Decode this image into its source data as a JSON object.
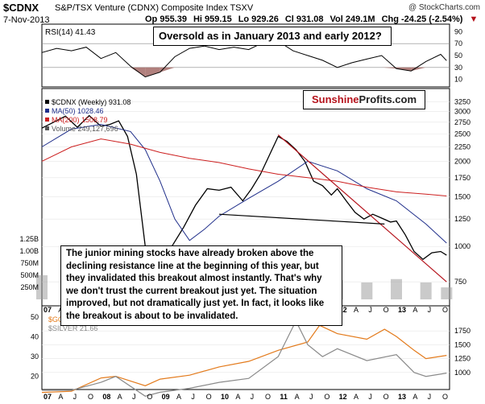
{
  "header": {
    "symbol": "$CDNX",
    "name": "S&P/TSX Venture (CDNX) Composite Index  TSXV",
    "copyright": "@ StockCharts.com",
    "date": "7-Nov-2013",
    "open": "Op 955.39",
    "high": "Hi 959.15",
    "low": "Lo 929.26",
    "close": "Cl 931.08",
    "volume": "Vol 249.1M",
    "change": "Chg -24.25 (-2.54%)",
    "change_marker": "▼"
  },
  "colors": {
    "price": "#000000",
    "ma50": "#1f2e8a",
    "ma200": "#cc1f1f",
    "volume": "#9e9e9e",
    "rsi_line": "#000000",
    "rsi_fill_low": "#a36a66",
    "gold": "#e37a1b",
    "silver": "#8a8a8a",
    "resistance": "#b5121b",
    "brand_red": "#b5121b"
  },
  "annotations": {
    "rsi_callout": "Oversold as in January 2013 and early 2012?",
    "main_callout": "The junior mining stocks have already broken above the declining resistance line at the beginning of this year, but they invalidated this breakout almost instantly. That's why we don't trust the current breakout just yet. The situation improved, but not dramatically just yet. In fact, it looks like the breakout is about to be invalidated.",
    "brand_part1": "Sunshine",
    "brand_part2": "Profits.com"
  },
  "chart_data": [
    {
      "type": "line",
      "title": "RSI(14) 41.43",
      "ylim": [
        0,
        100
      ],
      "yticks": [
        10,
        30,
        50,
        70,
        90
      ],
      "reference_lines": [
        30,
        70
      ],
      "x": [
        2007.0,
        2007.25,
        2007.5,
        2007.75,
        2008.0,
        2008.25,
        2008.5,
        2008.75,
        2009.0,
        2009.25,
        2009.5,
        2009.75,
        2010.0,
        2010.25,
        2010.5,
        2010.75,
        2011.0,
        2011.25,
        2011.5,
        2011.75,
        2012.0,
        2012.25,
        2012.5,
        2012.75,
        2013.0,
        2013.25,
        2013.5,
        2013.75,
        2013.85
      ],
      "values": [
        55,
        62,
        58,
        64,
        45,
        55,
        32,
        14,
        22,
        48,
        62,
        66,
        60,
        64,
        60,
        72,
        74,
        58,
        50,
        42,
        30,
        38,
        44,
        50,
        28,
        24,
        40,
        52,
        41.43
      ]
    },
    {
      "type": "line",
      "title": "$CDNX (Weekly) 931.08",
      "yscale": "log",
      "ylim": [
        650,
        3300
      ],
      "yticks": [
        750,
        1000,
        1250,
        1500,
        1750,
        2000,
        2250,
        2500,
        2750,
        3000,
        3250
      ],
      "x_tick_labels": [
        "07",
        "A",
        "J",
        "O",
        "08",
        "A",
        "J",
        "O",
        "09",
        "A",
        "J",
        "O",
        "10",
        "A",
        "J",
        "O",
        "11",
        "A",
        "J",
        "O",
        "12",
        "A",
        "J",
        "O",
        "13",
        "A",
        "J",
        "O"
      ],
      "series": [
        {
          "name": "$CDNX (Weekly) 931.08",
          "x": [
            2007.0,
            2007.2,
            2007.4,
            2007.6,
            2007.8,
            2008.0,
            2008.15,
            2008.3,
            2008.45,
            2008.6,
            2008.75,
            2008.9,
            2009.0,
            2009.2,
            2009.4,
            2009.6,
            2009.8,
            2010.0,
            2010.2,
            2010.4,
            2010.55,
            2010.7,
            2010.85,
            2011.0,
            2011.15,
            2011.3,
            2011.45,
            2011.6,
            2011.75,
            2011.9,
            2012.0,
            2012.15,
            2012.3,
            2012.45,
            2012.6,
            2012.75,
            2012.9,
            2013.0,
            2013.15,
            2013.3,
            2013.45,
            2013.6,
            2013.75,
            2013.85
          ],
          "values": [
            2620,
            2750,
            2890,
            2640,
            2900,
            2660,
            2700,
            2780,
            2450,
            1800,
            1000,
            780,
            820,
            1000,
            1170,
            1400,
            1600,
            1580,
            1620,
            1450,
            1600,
            1800,
            2100,
            2450,
            2350,
            2200,
            2000,
            1700,
            1640,
            1520,
            1600,
            1450,
            1320,
            1250,
            1300,
            1260,
            1220,
            1230,
            1100,
            960,
            900,
            950,
            960,
            931.08
          ]
        },
        {
          "name": "MA(50) 1028.46",
          "x": [
            2007.0,
            2007.5,
            2008.0,
            2008.5,
            2008.75,
            2009.0,
            2009.25,
            2009.5,
            2009.75,
            2010.0,
            2010.5,
            2011.0,
            2011.5,
            2012.0,
            2012.5,
            2013.0,
            2013.5,
            2013.85
          ],
          "values": [
            2250,
            2600,
            2700,
            2550,
            2200,
            1700,
            1250,
            1050,
            1150,
            1280,
            1480,
            1700,
            2000,
            1850,
            1600,
            1450,
            1200,
            1028.46
          ]
        },
        {
          "name": "MA(200) 1508.79",
          "x": [
            2007.0,
            2007.5,
            2008.0,
            2008.5,
            2009.0,
            2009.5,
            2010.0,
            2010.5,
            2011.0,
            2011.5,
            2012.0,
            2012.5,
            2013.0,
            2013.5,
            2013.85
          ],
          "values": [
            2000,
            2250,
            2400,
            2300,
            2150,
            2050,
            1980,
            1880,
            1800,
            1750,
            1700,
            1620,
            1560,
            1530,
            1508.79
          ]
        }
      ],
      "volume": {
        "name": "Volume 249,127,696",
        "ylim": [
          0,
          1500000000
        ],
        "yticks_labels": [
          "250M",
          "500M",
          "750M",
          "1.00B",
          "1.25B"
        ],
        "yticks_values": [
          250000000,
          500000000,
          750000000,
          1000000000,
          1250000000
        ],
        "x": [
          2007.0,
          2007.5,
          2008.0,
          2008.5,
          2009.0,
          2009.5,
          2010.0,
          2010.5,
          2011.0,
          2011.5,
          2012.0,
          2012.5,
          2013.0,
          2013.5,
          2013.85
        ],
        "values": [
          500000000,
          450000000,
          420000000,
          380000000,
          350000000,
          400000000,
          450000000,
          420000000,
          550000000,
          450000000,
          400000000,
          350000000,
          420000000,
          350000000,
          249127696
        ]
      },
      "trendlines": [
        {
          "name": "declining resistance line",
          "x": [
            2011.0,
            2013.85
          ],
          "values": [
            2480,
            750
          ]
        },
        {
          "name": "support line",
          "x": [
            2010.0,
            2012.8
          ],
          "values": [
            1300,
            1200
          ]
        }
      ]
    },
    {
      "type": "line",
      "title": "$GOLD / $SILVER",
      "left_axis": {
        "ylim": [
          15,
          50
        ],
        "yticks": [
          20,
          30,
          40,
          50
        ]
      },
      "right_axis": {
        "ylim": [
          750,
          2000
        ],
        "yticks": [
          1000,
          1250,
          1500,
          1750
        ]
      },
      "x_tick_labels": [
        "07",
        "A",
        "J",
        "O",
        "08",
        "A",
        "J",
        "O",
        "09",
        "A",
        "J",
        "O",
        "10",
        "A",
        "J",
        "O",
        "11",
        "A",
        "J",
        "O",
        "12",
        "A",
        "J",
        "O",
        "13",
        "A",
        "J",
        "O"
      ],
      "series": [
        {
          "name": "$GOLD",
          "axis": "right",
          "x": [
            2007.0,
            2007.5,
            2008.0,
            2008.25,
            2008.75,
            2009.0,
            2009.5,
            2010.0,
            2010.5,
            2011.0,
            2011.5,
            2011.7,
            2012.0,
            2012.5,
            2012.8,
            2013.0,
            2013.3,
            2013.5,
            2013.85
          ],
          "values": [
            640,
            660,
            900,
            930,
            760,
            880,
            950,
            1100,
            1200,
            1400,
            1550,
            1850,
            1700,
            1600,
            1780,
            1650,
            1400,
            1250,
            1308
          ]
        },
        {
          "name": "$SILVER 21.66",
          "axis": "left",
          "x": [
            2007.0,
            2007.5,
            2008.0,
            2008.25,
            2008.75,
            2009.0,
            2009.5,
            2010.0,
            2010.5,
            2011.0,
            2011.3,
            2011.5,
            2011.75,
            2012.0,
            2012.5,
            2013.0,
            2013.3,
            2013.5,
            2013.85
          ],
          "values": [
            13,
            13,
            17,
            20,
            10,
            12,
            14,
            17,
            19,
            30,
            48,
            36,
            30,
            34,
            28,
            31,
            22,
            20,
            21.66
          ]
        }
      ]
    }
  ]
}
